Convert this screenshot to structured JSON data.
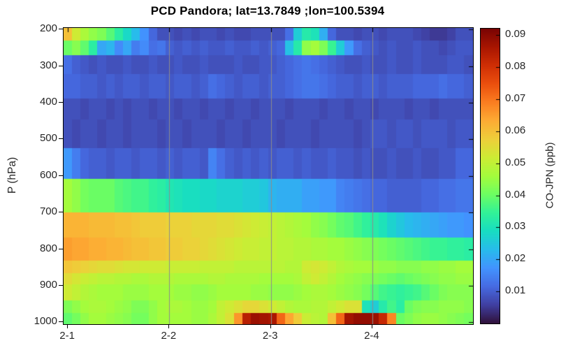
{
  "chart_data": {
    "type": "heatmap",
    "title": "PCD Pandora; lat=13.7849 ;lon=100.5394",
    "xlabel": "",
    "ylabel": "P (hPa)",
    "colorbar_label": "CO-JPN (ppb)",
    "colormap": "turbo",
    "color_scale": {
      "vmin": 0.0,
      "vmax": 0.092
    },
    "colorbar_ticks": [
      0.01,
      0.02,
      0.03,
      0.04,
      0.05,
      0.06,
      0.07,
      0.08,
      0.09
    ],
    "colorbar_tick_labels": [
      "0.01",
      "0.02",
      "0.03",
      "0.04",
      "0.05",
      "0.06",
      "0.07",
      "0.08",
      "0.09"
    ],
    "y_axis": {
      "pmin": 196,
      "pmax": 1005,
      "ticks": [
        200,
        300,
        400,
        500,
        600,
        700,
        800,
        900,
        1000
      ],
      "tick_labels": [
        "200",
        "300",
        "400",
        "500",
        "600",
        "700",
        "800",
        "900",
        "1000"
      ]
    },
    "x_axis": {
      "n_cols": 48,
      "ticks": [
        {
          "label": "2-1",
          "col": 0.5,
          "grid": false
        },
        {
          "label": "2-2",
          "col": 12.4,
          "grid": true
        },
        {
          "label": "2-3",
          "col": 24.3,
          "grid": true
        },
        {
          "label": "2-4",
          "col": 36.2,
          "grid": true
        }
      ],
      "grid_color": "#8c8c8c"
    },
    "pressure_edges": [
      196,
      232,
      271,
      322,
      389,
      446,
      526,
      610,
      700,
      770,
      832,
      866,
      898,
      942,
      975,
      1005
    ],
    "row_pressures": [
      214,
      252,
      297,
      356,
      418,
      486,
      568,
      655,
      735,
      801,
      849,
      882,
      920,
      958,
      990
    ],
    "values": [
      [
        0.06,
        0.052,
        0.047,
        0.044,
        0.042,
        0.038,
        0.033,
        0.028,
        0.023,
        0.017,
        0.011,
        0.008,
        0.008,
        0.007,
        0.008,
        0.007,
        0.008,
        0.008,
        0.007,
        0.008,
        0.007,
        0.007,
        0.008,
        0.008,
        0.008,
        0.008,
        0.012,
        0.026,
        0.032,
        0.03,
        0.021,
        0.011,
        0.008,
        0.008,
        0.007,
        0.008,
        0.008,
        0.007,
        0.008,
        0.008,
        0.008,
        0.007,
        0.006,
        0.005,
        0.005,
        0.006,
        0.008,
        0.008
      ],
      [
        0.04,
        0.043,
        0.039,
        0.033,
        0.02,
        0.022,
        0.016,
        0.02,
        0.014,
        0.016,
        0.012,
        0.013,
        0.01,
        0.009,
        0.01,
        0.009,
        0.01,
        0.009,
        0.009,
        0.01,
        0.009,
        0.009,
        0.01,
        0.009,
        0.01,
        0.011,
        0.024,
        0.032,
        0.044,
        0.046,
        0.042,
        0.035,
        0.026,
        0.018,
        0.012,
        0.01,
        0.009,
        0.008,
        0.009,
        0.008,
        0.008,
        0.009,
        0.008,
        0.008,
        0.007,
        0.008,
        0.009,
        0.009
      ],
      [
        0.012,
        0.01,
        0.009,
        0.008,
        0.009,
        0.008,
        0.008,
        0.009,
        0.008,
        0.008,
        0.009,
        0.008,
        0.008,
        0.009,
        0.008,
        0.008,
        0.009,
        0.008,
        0.008,
        0.008,
        0.009,
        0.008,
        0.008,
        0.009,
        0.009,
        0.01,
        0.011,
        0.012,
        0.013,
        0.012,
        0.011,
        0.01,
        0.009,
        0.008,
        0.008,
        0.009,
        0.008,
        0.008,
        0.009,
        0.008,
        0.008,
        0.009,
        0.008,
        0.008,
        0.008,
        0.009,
        0.009,
        0.008
      ],
      [
        0.011,
        0.011,
        0.01,
        0.01,
        0.009,
        0.01,
        0.009,
        0.01,
        0.01,
        0.009,
        0.01,
        0.01,
        0.009,
        0.01,
        0.01,
        0.009,
        0.01,
        0.012,
        0.011,
        0.01,
        0.009,
        0.01,
        0.01,
        0.009,
        0.01,
        0.01,
        0.011,
        0.012,
        0.013,
        0.013,
        0.012,
        0.011,
        0.01,
        0.01,
        0.009,
        0.01,
        0.01,
        0.009,
        0.01,
        0.01,
        0.01,
        0.011,
        0.011,
        0.011,
        0.012,
        0.011,
        0.011,
        0.01
      ],
      [
        0.008,
        0.008,
        0.007,
        0.008,
        0.008,
        0.007,
        0.008,
        0.007,
        0.008,
        0.008,
        0.007,
        0.008,
        0.008,
        0.007,
        0.008,
        0.008,
        0.007,
        0.008,
        0.008,
        0.007,
        0.008,
        0.008,
        0.007,
        0.008,
        0.008,
        0.008,
        0.007,
        0.008,
        0.008,
        0.008,
        0.007,
        0.008,
        0.008,
        0.007,
        0.008,
        0.008,
        0.007,
        0.008,
        0.008,
        0.008,
        0.007,
        0.008,
        0.008,
        0.007,
        0.008,
        0.008,
        0.008,
        0.008
      ],
      [
        0.008,
        0.007,
        0.008,
        0.008,
        0.007,
        0.008,
        0.008,
        0.007,
        0.008,
        0.008,
        0.008,
        0.007,
        0.008,
        0.008,
        0.007,
        0.008,
        0.008,
        0.008,
        0.007,
        0.008,
        0.008,
        0.007,
        0.008,
        0.008,
        0.008,
        0.007,
        0.008,
        0.008,
        0.008,
        0.007,
        0.008,
        0.008,
        0.008,
        0.008,
        0.007,
        0.008,
        0.009,
        0.009,
        0.008,
        0.009,
        0.009,
        0.008,
        0.009,
        0.009,
        0.009,
        0.008,
        0.009,
        0.009
      ],
      [
        0.018,
        0.014,
        0.011,
        0.01,
        0.01,
        0.009,
        0.01,
        0.01,
        0.009,
        0.01,
        0.01,
        0.009,
        0.01,
        0.009,
        0.01,
        0.01,
        0.009,
        0.015,
        0.012,
        0.01,
        0.009,
        0.01,
        0.009,
        0.01,
        0.009,
        0.01,
        0.01,
        0.009,
        0.01,
        0.009,
        0.009,
        0.01,
        0.009,
        0.009,
        0.008,
        0.009,
        0.008,
        0.008,
        0.009,
        0.008,
        0.008,
        0.009,
        0.008,
        0.008,
        0.009,
        0.009,
        0.011,
        0.011
      ],
      [
        0.046,
        0.044,
        0.041,
        0.04,
        0.04,
        0.04,
        0.038,
        0.037,
        0.036,
        0.036,
        0.034,
        0.033,
        0.031,
        0.03,
        0.029,
        0.029,
        0.028,
        0.028,
        0.027,
        0.027,
        0.027,
        0.026,
        0.026,
        0.025,
        0.022,
        0.021,
        0.021,
        0.021,
        0.019,
        0.019,
        0.018,
        0.018,
        0.015,
        0.014,
        0.013,
        0.012,
        0.011,
        0.011,
        0.01,
        0.01,
        0.01,
        0.01,
        0.011,
        0.011,
        0.012,
        0.012,
        0.013,
        0.013
      ],
      [
        0.062,
        0.062,
        0.062,
        0.061,
        0.061,
        0.061,
        0.06,
        0.06,
        0.059,
        0.058,
        0.058,
        0.058,
        0.057,
        0.057,
        0.057,
        0.056,
        0.056,
        0.056,
        0.055,
        0.055,
        0.054,
        0.053,
        0.052,
        0.051,
        0.05,
        0.049,
        0.048,
        0.047,
        0.046,
        0.044,
        0.043,
        0.041,
        0.039,
        0.038,
        0.036,
        0.034,
        0.032,
        0.03,
        0.027,
        0.025,
        0.023,
        0.022,
        0.021,
        0.02,
        0.019,
        0.018,
        0.018,
        0.017
      ],
      [
        0.065,
        0.064,
        0.064,
        0.063,
        0.063,
        0.062,
        0.062,
        0.061,
        0.06,
        0.06,
        0.059,
        0.059,
        0.058,
        0.058,
        0.057,
        0.057,
        0.056,
        0.055,
        0.054,
        0.053,
        0.052,
        0.051,
        0.051,
        0.05,
        0.05,
        0.049,
        0.049,
        0.048,
        0.048,
        0.047,
        0.047,
        0.046,
        0.046,
        0.045,
        0.044,
        0.043,
        0.042,
        0.041,
        0.04,
        0.039,
        0.038,
        0.037,
        0.036,
        0.035,
        0.035,
        0.034,
        0.034,
        0.033
      ],
      [
        0.059,
        0.058,
        0.057,
        0.056,
        0.055,
        0.055,
        0.054,
        0.053,
        0.053,
        0.052,
        0.052,
        0.052,
        0.051,
        0.051,
        0.051,
        0.051,
        0.05,
        0.05,
        0.05,
        0.05,
        0.049,
        0.049,
        0.049,
        0.049,
        0.049,
        0.049,
        0.048,
        0.048,
        0.052,
        0.053,
        0.052,
        0.05,
        0.048,
        0.047,
        0.046,
        0.046,
        0.045,
        0.044,
        0.044,
        0.043,
        0.043,
        0.043,
        0.044,
        0.044,
        0.045,
        0.045,
        0.046,
        0.046
      ],
      [
        0.055,
        0.053,
        0.051,
        0.05,
        0.049,
        0.049,
        0.048,
        0.048,
        0.047,
        0.047,
        0.048,
        0.048,
        0.048,
        0.047,
        0.047,
        0.047,
        0.047,
        0.048,
        0.048,
        0.047,
        0.047,
        0.047,
        0.047,
        0.046,
        0.046,
        0.046,
        0.046,
        0.047,
        0.05,
        0.052,
        0.05,
        0.048,
        0.046,
        0.045,
        0.044,
        0.043,
        0.042,
        0.041,
        0.04,
        0.039,
        0.04,
        0.041,
        0.042,
        0.043,
        0.044,
        0.044,
        0.045,
        0.045
      ],
      [
        0.052,
        0.05,
        0.048,
        0.047,
        0.046,
        0.046,
        0.046,
        0.045,
        0.045,
        0.045,
        0.046,
        0.046,
        0.046,
        0.045,
        0.045,
        0.044,
        0.044,
        0.045,
        0.046,
        0.046,
        0.046,
        0.046,
        0.045,
        0.045,
        0.044,
        0.044,
        0.044,
        0.045,
        0.046,
        0.047,
        0.047,
        0.046,
        0.045,
        0.044,
        0.043,
        0.041,
        0.038,
        0.036,
        0.035,
        0.034,
        0.035,
        0.036,
        0.038,
        0.04,
        0.042,
        0.043,
        0.043,
        0.043
      ],
      [
        0.042,
        0.044,
        0.046,
        0.047,
        0.047,
        0.046,
        0.045,
        0.044,
        0.042,
        0.042,
        0.044,
        0.046,
        0.047,
        0.047,
        0.046,
        0.045,
        0.045,
        0.046,
        0.05,
        0.052,
        0.054,
        0.056,
        0.056,
        0.054,
        0.052,
        0.05,
        0.048,
        0.047,
        0.047,
        0.048,
        0.048,
        0.05,
        0.052,
        0.054,
        0.054,
        0.03,
        0.026,
        0.032,
        0.036,
        0.033,
        0.04,
        0.042,
        0.043,
        0.043,
        0.044,
        0.044,
        0.044,
        0.043
      ],
      [
        0.039,
        0.041,
        0.044,
        0.046,
        0.046,
        0.045,
        0.044,
        0.043,
        0.041,
        0.041,
        0.044,
        0.046,
        0.046,
        0.046,
        0.046,
        0.045,
        0.045,
        0.047,
        0.05,
        0.054,
        0.066,
        0.084,
        0.088,
        0.087,
        0.086,
        0.072,
        0.064,
        0.058,
        0.051,
        0.049,
        0.048,
        0.06,
        0.072,
        0.087,
        0.089,
        0.089,
        0.088,
        0.082,
        0.068,
        0.04,
        0.042,
        0.044,
        0.045,
        0.045,
        0.044,
        0.043,
        0.042,
        0.041
      ]
    ]
  }
}
